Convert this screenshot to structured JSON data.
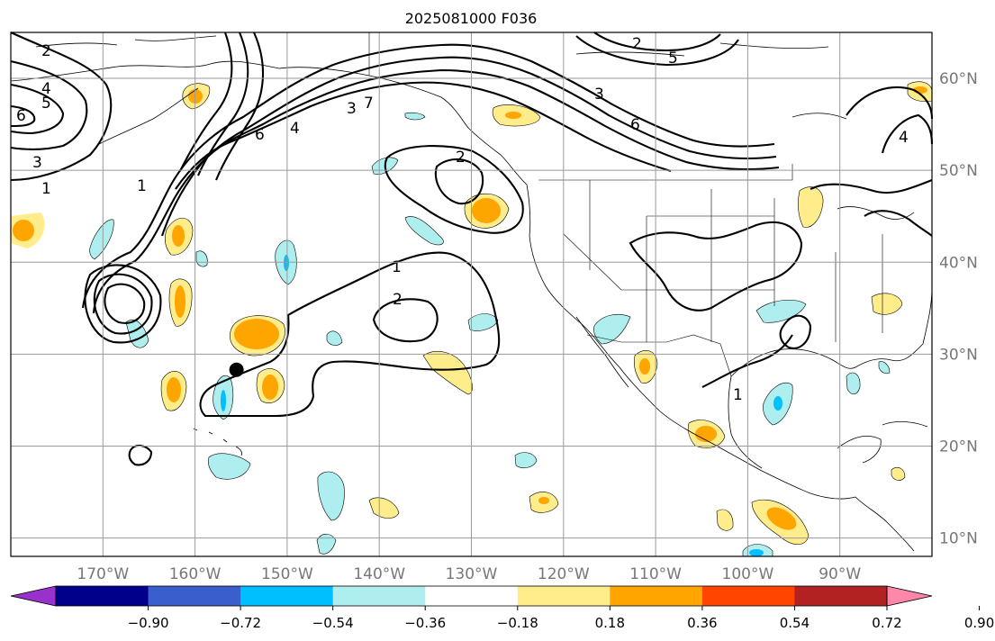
{
  "title": "2025081000 F036",
  "map": {
    "lon_range": [
      -180,
      -80
    ],
    "lat_range": [
      8,
      65
    ],
    "lon_ticks": [
      {
        "value": -170,
        "label": "170°W"
      },
      {
        "value": -160,
        "label": "160°W"
      },
      {
        "value": -150,
        "label": "150°W"
      },
      {
        "value": -140,
        "label": "140°W"
      },
      {
        "value": -130,
        "label": "130°W"
      },
      {
        "value": -120,
        "label": "120°W"
      },
      {
        "value": -110,
        "label": "110°W"
      },
      {
        "value": -100,
        "label": "100°W"
      },
      {
        "value": -90,
        "label": "90°W"
      }
    ],
    "lat_ticks": [
      {
        "value": 10,
        "label": "10°N"
      },
      {
        "value": 20,
        "label": "20°N"
      },
      {
        "value": 30,
        "label": "30°N"
      },
      {
        "value": 40,
        "label": "40°N"
      },
      {
        "value": 50,
        "label": "50°N"
      },
      {
        "value": 60,
        "label": "60°N"
      }
    ],
    "marker": {
      "lon": -155.5,
      "lat": 28.3,
      "color": "#000000"
    }
  },
  "contour_labels": [
    "2",
    "4",
    "5",
    "6",
    "3",
    "1",
    "6",
    "4",
    "3",
    "7",
    "2",
    "6",
    "3",
    "4",
    "2",
    "1",
    "2",
    "1",
    "1",
    "5"
  ],
  "colorbar": {
    "colors": [
      "#9932cc",
      "#00008b",
      "#3a5fcd",
      "#00bfff",
      "#afeeee",
      "#ffffff",
      "#ffec8b",
      "#ffa500",
      "#ff4500",
      "#b22222",
      "#ff88aa"
    ],
    "ticks": [
      "−0.90",
      "−0.72",
      "−0.54",
      "−0.36",
      "−0.18",
      "0.18",
      "0.36",
      "0.54",
      "0.72",
      "0.90"
    ]
  }
}
